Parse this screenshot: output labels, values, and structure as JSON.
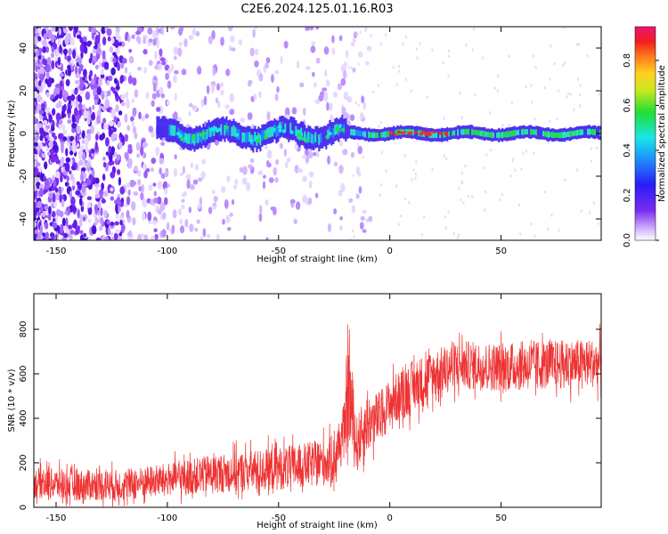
{
  "figure": {
    "title": "C2E6.2024.125.01.16.R03"
  },
  "chart_data": [
    {
      "type": "heatmap",
      "xlabel": "Height of straight line (km)",
      "ylabel": "Frequency (Hz)",
      "xlim": [
        -160,
        95
      ],
      "ylim": [
        -50,
        50
      ],
      "xticks": [
        "-150",
        "-100",
        "-50",
        "0",
        "50"
      ],
      "yticks": [
        "-40",
        "-20",
        "0",
        "20",
        "40"
      ],
      "colorbar": {
        "label": "Normalized spectral amplitude",
        "range": [
          0,
          0.95
        ],
        "ticks": [
          "0.0",
          "0.2",
          "0.4",
          "0.6",
          "0.8"
        ],
        "colormap": "rainbow: white, violet, blue, cyan, green, yellow, orange, red, magenta"
      },
      "features": {
        "noise_region_x": [
          -160,
          -20
        ],
        "band_center_hz": 0,
        "band_half_width_hz": 3,
        "peak_amplitude_x": [
          0,
          28
        ],
        "colors": {
          "noise": "#7a2cf0",
          "band_edge": "#3b1cf0",
          "band_core": "#26e6c0",
          "peak": "#e8302a"
        }
      }
    },
    {
      "type": "line",
      "xlabel": "Height of straight line (km)",
      "ylabel": "SNR (10 * v/v)",
      "xlim": [
        -160,
        95
      ],
      "ylim": [
        0,
        960
      ],
      "xticks": [
        "-150",
        "-100",
        "-50",
        "0",
        "50"
      ],
      "yticks": [
        "0",
        "200",
        "400",
        "600",
        "800"
      ],
      "series": [
        {
          "color": "#ee3333",
          "x": [
            -160,
            -140,
            -120,
            -100,
            -80,
            -60,
            -40,
            -25,
            -20,
            -19,
            -15,
            -10,
            -5,
            0,
            10,
            20,
            30,
            50,
            70,
            95
          ],
          "mean": [
            110,
            100,
            100,
            125,
            150,
            165,
            185,
            210,
            360,
            560,
            280,
            380,
            400,
            470,
            540,
            600,
            640,
            630,
            640,
            650
          ],
          "spread": [
            70,
            70,
            70,
            75,
            85,
            95,
            100,
            110,
            130,
            300,
            130,
            130,
            120,
            110,
            120,
            110,
            110,
            110,
            110,
            110
          ]
        }
      ]
    }
  ]
}
